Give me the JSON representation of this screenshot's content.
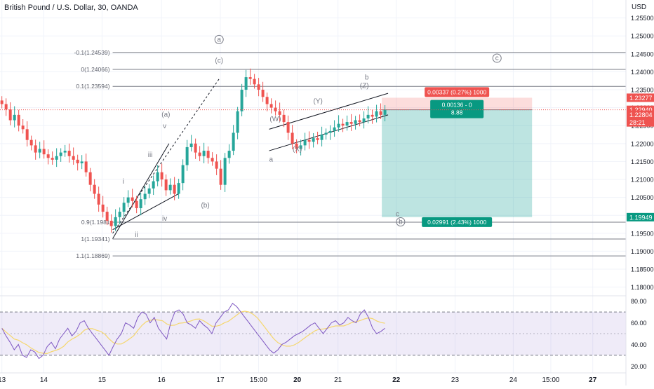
{
  "header": {
    "title": "British Pound / U.S. Dollar, 30, OANDA"
  },
  "colors": {
    "up": "#26a69a",
    "down": "#ef5350",
    "grid": "#f0f3fa",
    "axis_text": "#131722",
    "fib": "#787b86",
    "rsi": "#7e57c2",
    "rsi_ma": "#f5d76e"
  },
  "chart_data": {
    "type": "candlestick",
    "title": "British Pound / U.S. Dollar, 30, OANDA",
    "currency": "USD",
    "ylim": [
      1.177,
      1.26
    ],
    "y_ticks": [
      "1.25500",
      "1.25000",
      "1.24500",
      "1.24000",
      "1.23500",
      "1.23000",
      "1.22500",
      "1.22000",
      "1.21500",
      "1.21000",
      "1.20500",
      "1.20000",
      "1.19500",
      "1.19000",
      "1.18500",
      "1.18000"
    ],
    "x_ticks": [
      "13",
      "14",
      "15",
      "16",
      "17",
      "15:00",
      "20",
      "21",
      "22",
      "23",
      "24",
      "15:00",
      "27"
    ],
    "price_labels": [
      {
        "value": "1.23277",
        "color": "#ef5350"
      },
      {
        "value": "1.22940",
        "color": "#ef5350"
      },
      {
        "value": "1.22804",
        "color": "#ef5350"
      },
      {
        "value": "28:21",
        "color": "#ef5350"
      },
      {
        "value": "1.19949",
        "color": "#089981"
      }
    ],
    "fib_levels": [
      {
        "label": "-0.1(1.24539)",
        "price": 1.24539
      },
      {
        "label": "0(1.24066)",
        "price": 1.24066
      },
      {
        "label": "0.1(1.23594)",
        "price": 1.23594
      },
      {
        "label": "0.9(1.1981",
        "price": 1.1981
      },
      {
        "label": "1(1.19341)",
        "price": 1.19341
      },
      {
        "label": "1.1(1.18869)",
        "price": 1.18869
      }
    ],
    "close_path": [
      1.231,
      1.2295,
      1.2265,
      1.228,
      1.225,
      1.224,
      1.221,
      1.2195,
      1.2175,
      1.2185,
      1.217,
      1.216,
      1.2155,
      1.2165,
      1.2175,
      1.218,
      1.2165,
      1.2155,
      1.2145,
      1.215,
      1.212,
      1.2085,
      1.206,
      1.203,
      1.201,
      1.1985,
      1.197,
      1.1995,
      1.201,
      1.2035,
      1.205,
      1.204,
      1.202,
      1.2045,
      1.206,
      1.2075,
      1.2095,
      1.212,
      1.21,
      1.207,
      1.2085,
      1.206,
      1.209,
      1.214,
      1.219,
      1.22,
      1.2175,
      1.2165,
      1.218,
      1.216,
      1.215,
      1.213,
      1.2085,
      1.216,
      1.218,
      1.223,
      1.229,
      1.235,
      1.2385,
      1.238,
      1.2365,
      1.235,
      1.233,
      1.231,
      1.23,
      1.229,
      1.228,
      1.226,
      1.223,
      1.22,
      1.2185,
      1.2195,
      1.221,
      1.2205,
      1.2215,
      1.221,
      1.2225,
      1.223,
      1.2235,
      1.2245,
      1.2255,
      1.225,
      1.226,
      1.2255,
      1.2265,
      1.226,
      1.227,
      1.228,
      1.2275,
      1.229,
      1.228,
      1.2295
    ],
    "annotations": [
      {
        "text": "a",
        "circled": true,
        "price": 1.2484,
        "pos": 0.35
      },
      {
        "text": "(c)",
        "circled": false,
        "price": 1.2425,
        "pos": 0.35
      },
      {
        "text": "c",
        "circled": true,
        "price": 1.2432,
        "pos": 0.794
      },
      {
        "text": "b",
        "circled": false,
        "price": 1.2378,
        "pos": 0.586
      },
      {
        "text": "(Z)",
        "circled": false,
        "price": 1.2355,
        "pos": 0.582
      },
      {
        "text": "(a)",
        "circled": false,
        "price": 1.2275,
        "pos": 0.265
      },
      {
        "text": "v",
        "circled": false,
        "price": 1.2243,
        "pos": 0.263
      },
      {
        "text": "iii",
        "circled": false,
        "price": 1.2163,
        "pos": 0.24
      },
      {
        "text": "i",
        "circled": false,
        "price": 1.2088,
        "pos": 0.197
      },
      {
        "text": "iv",
        "circled": false,
        "price": 1.1985,
        "pos": 0.263
      },
      {
        "text": "ii",
        "circled": false,
        "price": 1.194,
        "pos": 0.218
      },
      {
        "text": "(b)",
        "circled": false,
        "price": 1.2022,
        "pos": 0.328
      },
      {
        "text": "a",
        "circled": false,
        "price": 1.215,
        "pos": 0.433
      },
      {
        "text": "(W)",
        "circled": false,
        "price": 1.2262,
        "pos": 0.44
      },
      {
        "text": "(X)",
        "circled": false,
        "price": 1.2178,
        "pos": 0.475
      },
      {
        "text": "(Y)",
        "circled": false,
        "price": 1.2312,
        "pos": 0.508
      },
      {
        "text": "c",
        "circled": false,
        "price": 1.1998,
        "pos": 0.635
      },
      {
        "text": "b",
        "circled": true,
        "price": 1.1976,
        "pos": 0.64
      }
    ],
    "position_tool": {
      "stop_label": "0.00337 (0.27%) 1000",
      "mid_label_1": "0.00136 - 0",
      "mid_label_2": "8.88",
      "target_label": "0.02991 (2.43%) 1000",
      "entry": 1.2294,
      "stop": 1.23277,
      "target": 1.19949
    },
    "rsi": {
      "ylim": [
        15,
        85
      ],
      "ticks": [
        "80.00",
        "60.00",
        "40.00",
        "20.00"
      ],
      "band": [
        30,
        70
      ],
      "values": [
        55,
        48,
        42,
        35,
        40,
        30,
        28,
        35,
        33,
        27,
        30,
        38,
        42,
        36,
        45,
        50,
        55,
        48,
        52,
        60,
        62,
        55,
        50,
        45,
        40,
        35,
        30,
        38,
        45,
        50,
        60,
        58,
        55,
        65,
        70,
        68,
        60,
        65,
        55,
        50,
        45,
        60,
        70,
        72,
        68,
        60,
        58,
        55,
        62,
        58,
        55,
        50,
        60,
        65,
        70,
        72,
        78,
        75,
        70,
        65,
        60,
        55,
        50,
        45,
        40,
        35,
        32,
        35,
        40,
        42,
        45,
        48,
        50,
        52,
        55,
        58,
        60,
        55,
        50,
        55,
        60,
        62,
        58,
        60,
        65,
        62,
        60,
        68,
        72,
        65,
        55,
        50,
        52,
        55
      ]
    }
  }
}
